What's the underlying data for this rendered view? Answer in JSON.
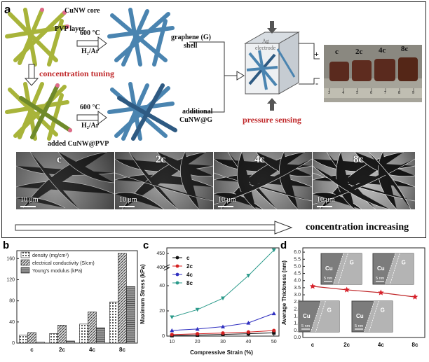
{
  "panels": {
    "a": "a",
    "b": "b",
    "c": "c",
    "d": "d"
  },
  "schematic": {
    "core_label": "CuNW core",
    "pvp_label": "PVP layer",
    "temp_top": "600 °C",
    "gas_top": "H₂/Ar",
    "graphene_label_1": "graphene (G)",
    "graphene_label_2": "shell",
    "tuning_label": "concentration tuning",
    "temp_bottom": "600 °C",
    "gas_bottom": "H₂/Ar",
    "additional_1": "additional",
    "additional_2": "CuNW@G",
    "added_label": "added CuNW@PVP",
    "electrode_1": "Ag",
    "electrode_2": "electrode",
    "plus": "+",
    "minus": "-",
    "sensing_label": "pressure sensing",
    "photo_labels": [
      "c",
      "2c",
      "4c",
      "8c"
    ],
    "ruler_nums": [
      "3",
      "4",
      "5",
      "6",
      "7",
      "8",
      "9"
    ]
  },
  "sem_images": [
    {
      "label": "c",
      "scale": "10 μm"
    },
    {
      "label": "2c",
      "scale": "10 μm"
    },
    {
      "label": "4c",
      "scale": "10 μm"
    },
    {
      "label": "8c",
      "scale": "10 μm"
    }
  ],
  "arrow_text": "concentration increasing",
  "chart_data": [
    {
      "type": "bar",
      "panel": "b",
      "categories": [
        "c",
        "2c",
        "4c",
        "8c"
      ],
      "series": [
        {
          "name": "density (mg/cm³)",
          "values": [
            15,
            18,
            36,
            78
          ]
        },
        {
          "name": "electrical conductivity (S/cm)",
          "values": [
            20,
            34,
            59,
            170
          ]
        },
        {
          "name": "Young's modulus (kPa)",
          "values": [
            2,
            4,
            29,
            107
          ]
        }
      ],
      "yticks": [
        "0",
        "40",
        "80",
        "120",
        "160"
      ],
      "ylim": [
        0,
        175
      ]
    },
    {
      "type": "line",
      "panel": "c",
      "xlabel": "Compressive Strain (%)",
      "ylabel": "Maximum Stress (kPa)",
      "x": [
        10,
        20,
        30,
        40,
        50
      ],
      "xticks": [
        "10",
        "20",
        "30",
        "40",
        "50"
      ],
      "yticks_low": [
        "0",
        "20",
        "40"
      ],
      "yticks_high": [
        "400",
        "450"
      ],
      "series": [
        {
          "name": "c",
          "color": "#111111",
          "marker": "square",
          "values": [
            0.4,
            0.8,
            1.3,
            1.9,
            2.6
          ]
        },
        {
          "name": "2c",
          "color": "#d42020",
          "marker": "circle",
          "values": [
            1.2,
            1.8,
            2.4,
            3.2,
            4.4
          ]
        },
        {
          "name": "4c",
          "color": "#3030c0",
          "marker": "triangle",
          "values": [
            4.5,
            5.6,
            7.5,
            10.5,
            18
          ]
        },
        {
          "name": "8c",
          "color": "#2a9a8a",
          "marker": "triangle-down",
          "values": [
            15,
            21,
            30,
            48,
            462
          ]
        }
      ]
    },
    {
      "type": "line",
      "panel": "d",
      "ylabel": "Average Thickness (nm)",
      "categories": [
        "c",
        "2c",
        "4c",
        "8c"
      ],
      "values": [
        3.6,
        3.35,
        3.15,
        2.85
      ],
      "yticks": [
        "0.0",
        "0.5",
        "1.0",
        "1.5",
        "2.0",
        "2.5",
        "3.0",
        "3.5",
        "4.0",
        "4.5",
        "5.0",
        "5.5",
        "6.0"
      ],
      "ylim": [
        0,
        6.3
      ],
      "inset_labels": {
        "cu": "Cu",
        "g": "G",
        "scale": "5 nm"
      }
    }
  ],
  "colors": {
    "wire_yellow": "#a8b43a",
    "wire_blue": "#4a84b0",
    "accent_red": "#c0282a",
    "tip_pink": "#e06a8a"
  }
}
